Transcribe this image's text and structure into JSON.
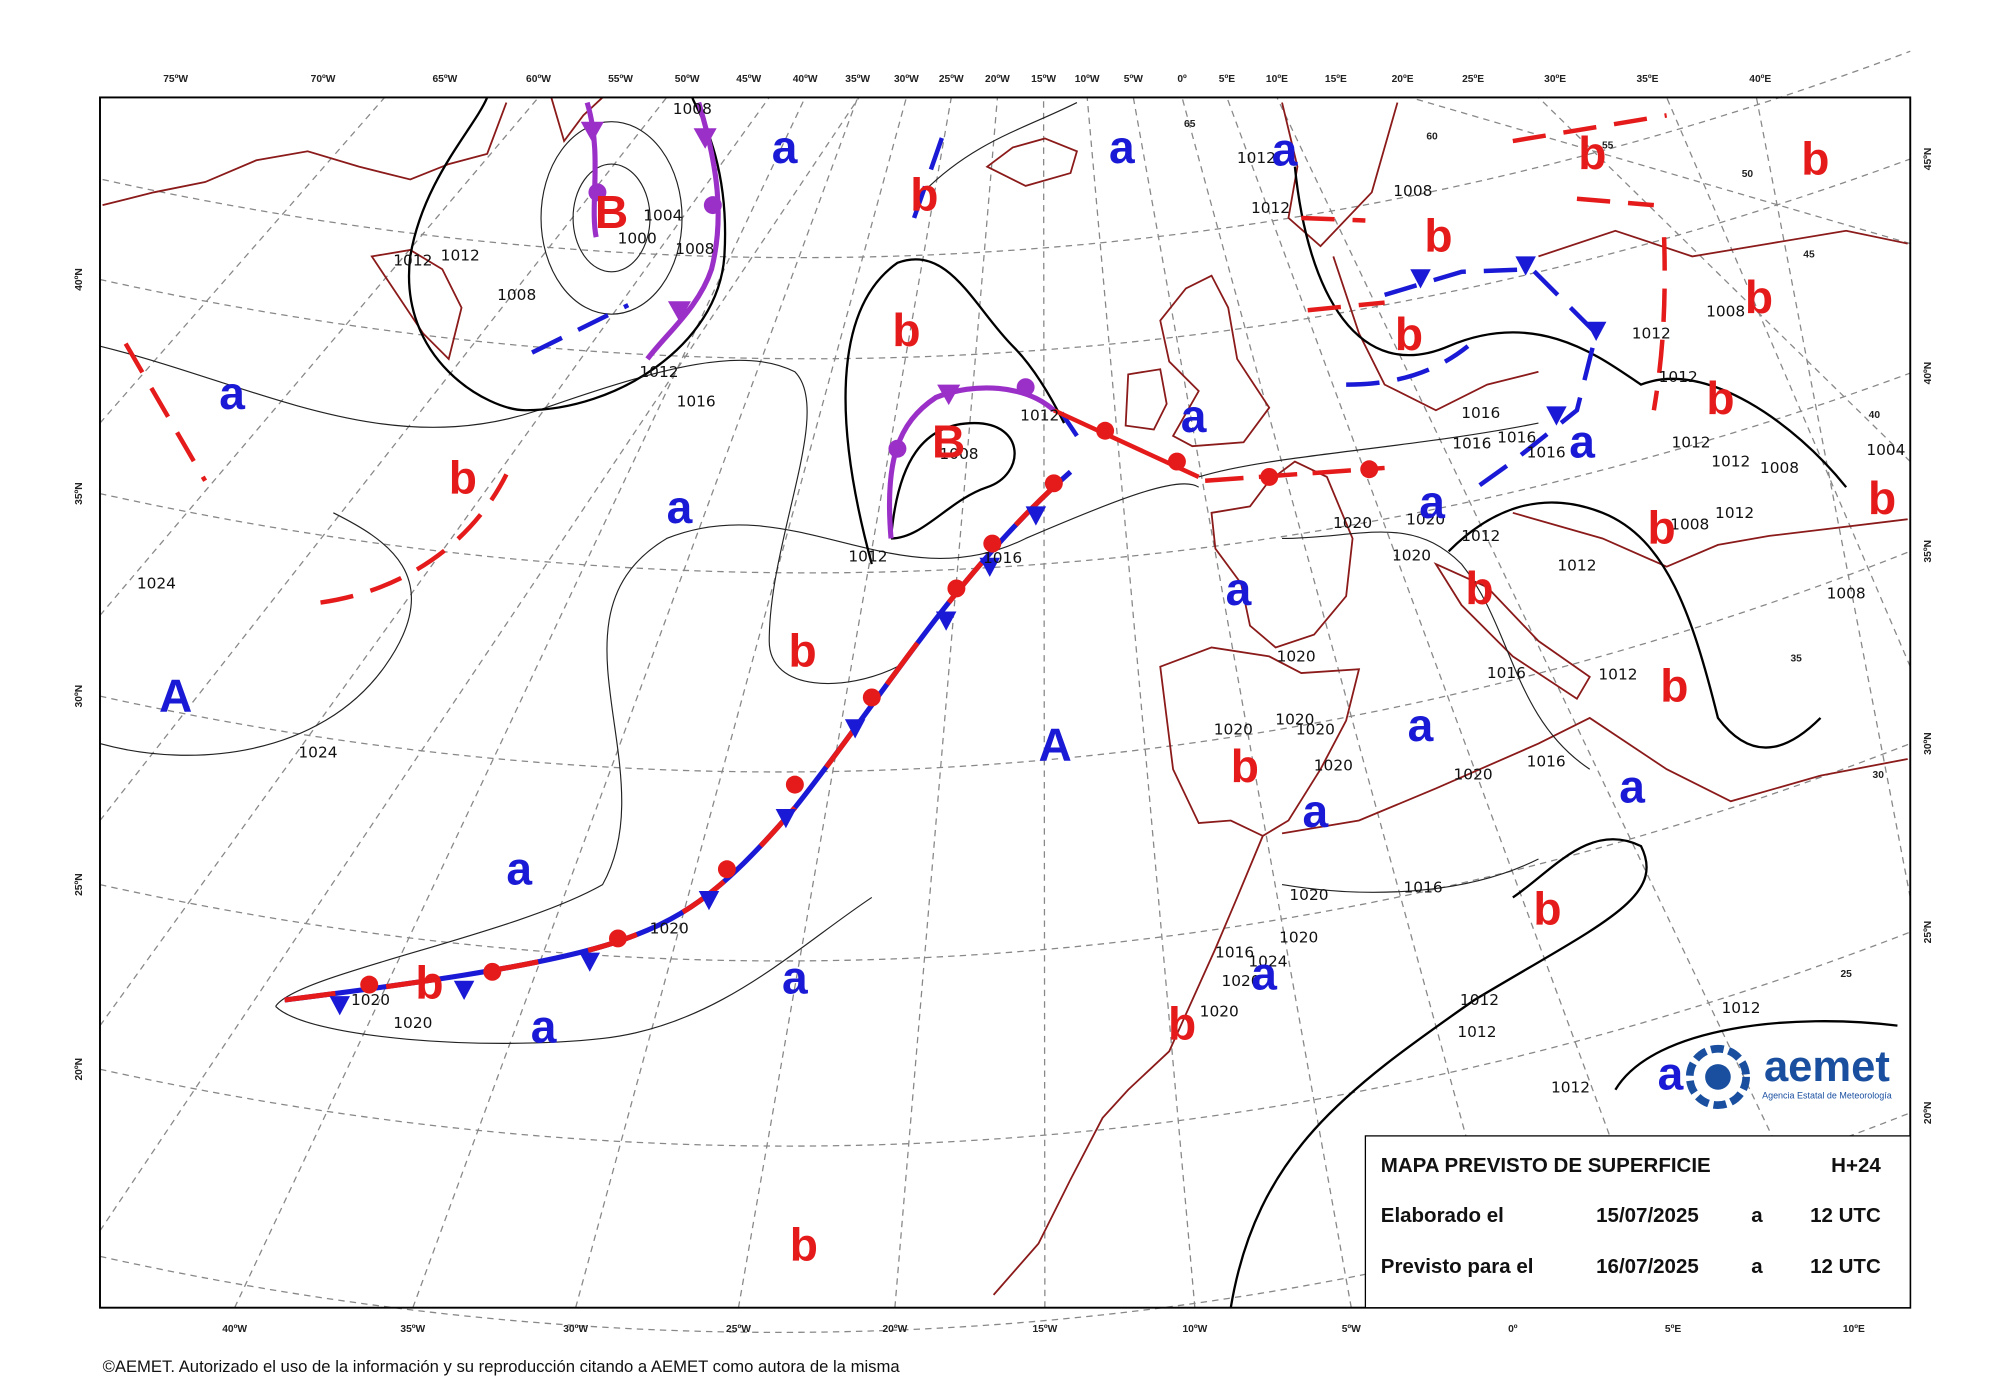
{
  "top_longitudes": [
    "75ºW",
    "70ºW",
    "65ºW",
    "60ºW",
    "55ºW",
    "50ºW",
    "45ºW",
    "40ºW",
    "35ºW",
    "30ºW",
    "25ºW",
    "20ºW",
    "15ºW",
    "10ºW",
    "5ºW",
    "0º",
    "5ºE",
    "10ºE",
    "15ºE",
    "20ºE",
    "25ºE",
    "30ºE",
    "35ºE",
    "40ºE"
  ],
  "bottom_longitudes": [
    "40ºW",
    "35ºW",
    "30ºW",
    "25ºW",
    "20ºW",
    "15ºW",
    "10ºW",
    "5ºW",
    "0º",
    "5ºE",
    "10ºE"
  ],
  "left_latitudes": [
    "40ºN",
    "35ºN",
    "30ºN",
    "25ºN",
    "20ºN"
  ],
  "right_latitudes": [
    "45ºN",
    "40ºN",
    "35ºN",
    "30ºN",
    "25ºN",
    "20ºN"
  ],
  "inner_latitudes": [
    65,
    60,
    55,
    50,
    45,
    40,
    35,
    30,
    25
  ],
  "pressure_centers": [
    {
      "label": "a",
      "color": "#1a1ad6"
    },
    {
      "label": "a",
      "color": "#1a1ad6"
    },
    {
      "label": "a",
      "color": "#1a1ad6"
    },
    {
      "label": "a",
      "color": "#1a1ad6"
    },
    {
      "label": "a",
      "color": "#1a1ad6"
    },
    {
      "label": "a",
      "color": "#1a1ad6"
    },
    {
      "label": "a",
      "color": "#1a1ad6"
    },
    {
      "label": "a",
      "color": "#1a1ad6"
    },
    {
      "label": "A",
      "color": "#1a1ad6"
    },
    {
      "label": "a",
      "color": "#1a1ad6"
    },
    {
      "label": "A",
      "color": "#1a1ad6"
    },
    {
      "label": "a",
      "color": "#1a1ad6"
    },
    {
      "label": "a",
      "color": "#1a1ad6"
    },
    {
      "label": "a",
      "color": "#1a1ad6"
    },
    {
      "label": "a",
      "color": "#1a1ad6"
    },
    {
      "label": "a",
      "color": "#1a1ad6"
    },
    {
      "label": "a",
      "color": "#1a1ad6"
    },
    {
      "label": "a",
      "color": "#1a1ad6"
    },
    {
      "label": "a",
      "color": "#1a1ad6"
    },
    {
      "label": "b",
      "color": "#e51b1b"
    },
    {
      "label": "b",
      "color": "#e51b1b"
    },
    {
      "label": "b",
      "color": "#e51b1b"
    },
    {
      "label": "B",
      "color": "#e51b1b"
    },
    {
      "label": "b",
      "color": "#e51b1b"
    },
    {
      "label": "b",
      "color": "#e51b1b"
    },
    {
      "label": "b",
      "color": "#e51b1b"
    },
    {
      "label": "b",
      "color": "#e51b1b"
    },
    {
      "label": "b",
      "color": "#e51b1b"
    },
    {
      "label": "B",
      "color": "#e51b1b"
    },
    {
      "label": "b",
      "color": "#e51b1b"
    },
    {
      "label": "b",
      "color": "#e51b1b"
    },
    {
      "label": "b",
      "color": "#e51b1b"
    },
    {
      "label": "b",
      "color": "#e51b1b"
    },
    {
      "label": "b",
      "color": "#e51b1b"
    },
    {
      "label": "b",
      "color": "#e51b1b"
    },
    {
      "label": "b",
      "color": "#e51b1b"
    },
    {
      "label": "b",
      "color": "#e51b1b"
    },
    {
      "label": "b",
      "color": "#e51b1b"
    },
    {
      "label": "b",
      "color": "#e51b1b"
    },
    {
      "label": "b",
      "color": "#e51b1b"
    }
  ],
  "isobar_labels": [
    1012,
    1012,
    1008,
    1000,
    1004,
    1008,
    1012,
    1016,
    1024,
    1024,
    1012,
    1008,
    1012,
    1016,
    1020,
    1020,
    1020,
    1020,
    1020,
    1020,
    1016,
    1016,
    1012,
    1012,
    1012,
    1020,
    1020,
    1020,
    1016,
    1016,
    1016,
    1016,
    1012,
    1012,
    1012,
    1012,
    1008,
    1008,
    1012,
    1008,
    1004,
    1008,
    1012,
    1012,
    1008,
    1020,
    1020,
    1020,
    1020,
    1016,
    1020,
    1016,
    1024,
    1020,
    1020,
    1012,
    1012,
    1012,
    1012,
    1008
  ],
  "info_box": {
    "title": "MAPA PREVISTO DE SUPERFICIE",
    "lead_time": "H+24",
    "rows": [
      [
        "Elaborado el",
        "15/07/2025",
        "a",
        "12 UTC"
      ],
      [
        "Previsto para el",
        "16/07/2025",
        "a",
        "12 UTC"
      ]
    ]
  },
  "logo": {
    "name": "aemet",
    "subtitle": "Agencia Estatal de Meteorología"
  },
  "footer": "©AEMET. Autorizado el uso de la información y su reproducción citando a AEMET como autora de la misma"
}
